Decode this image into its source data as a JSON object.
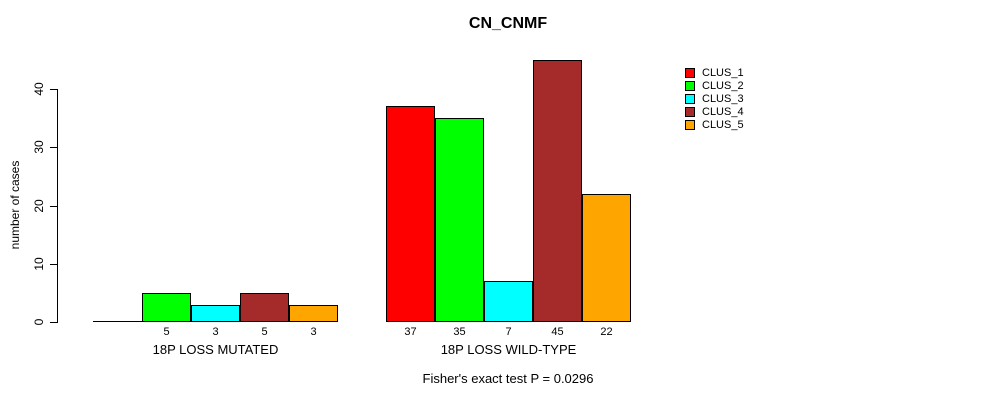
{
  "chart_data": {
    "type": "bar",
    "title": "CN_CNMF",
    "ylabel": "number of cases",
    "xlabel": "",
    "ylim": [
      0,
      45
    ],
    "yticks": [
      0,
      10,
      20,
      30,
      40
    ],
    "grid": false,
    "legend_position": "right",
    "groups": [
      "18P LOSS MUTATED",
      "18P LOSS WILD-TYPE"
    ],
    "series": [
      {
        "name": "CLUS_1",
        "color": "#ff0000",
        "values": [
          0,
          37
        ]
      },
      {
        "name": "CLUS_2",
        "color": "#00ff00",
        "values": [
          5,
          35
        ]
      },
      {
        "name": "CLUS_3",
        "color": "#00ffff",
        "values": [
          3,
          7
        ]
      },
      {
        "name": "CLUS_4",
        "color": "#a52a2a",
        "values": [
          5,
          45
        ]
      },
      {
        "name": "CLUS_5",
        "color": "#ffa500",
        "values": [
          3,
          22
        ]
      }
    ],
    "bar_labels": [
      [
        "",
        "5",
        "3",
        "5",
        "3"
      ],
      [
        "37",
        "35",
        "7",
        "45",
        "22"
      ]
    ],
    "annotation": "Fisher's exact test P = 0.0296"
  }
}
